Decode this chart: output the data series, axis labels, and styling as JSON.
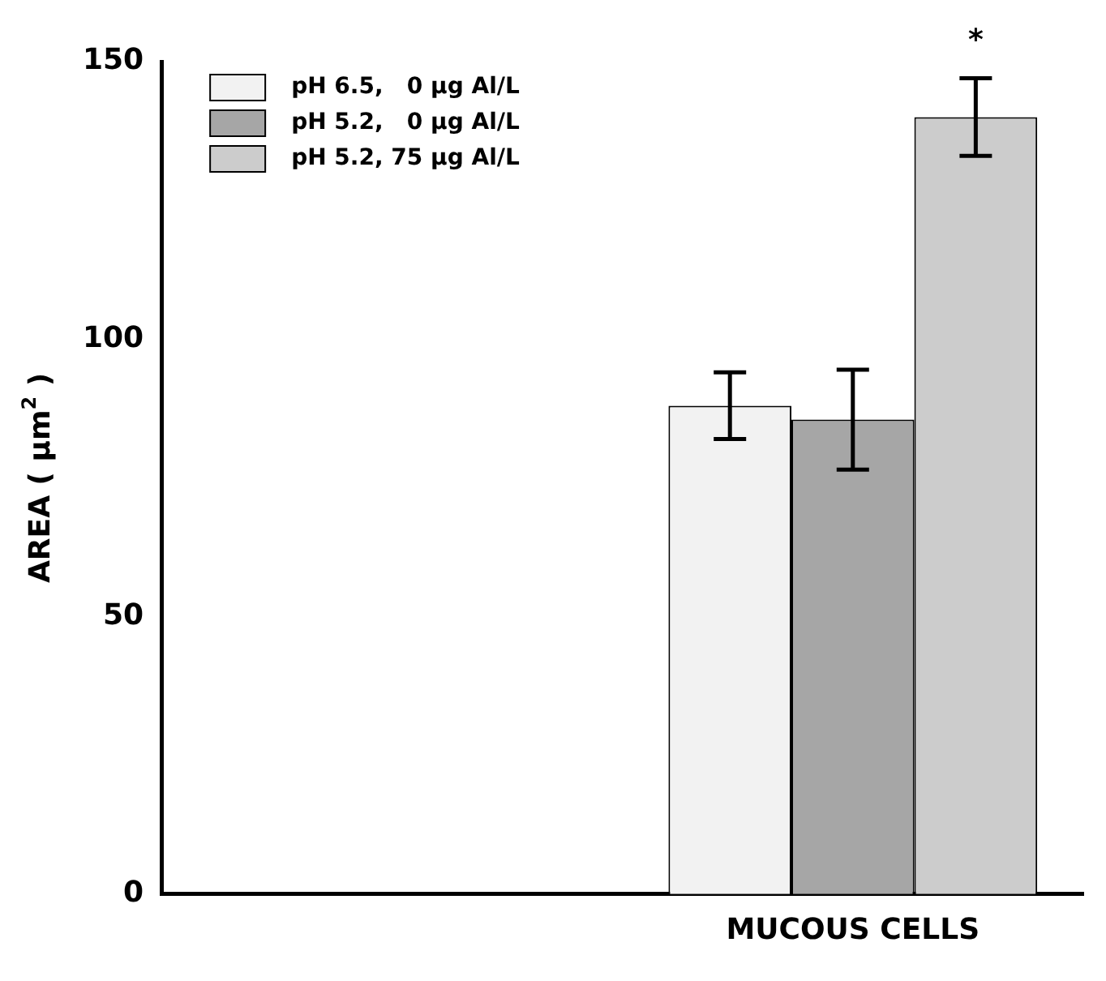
{
  "chart_data": {
    "type": "bar",
    "ylabel": "AREA ( μm$^{2}$ )",
    "categories": [
      null,
      "MUCOUS CELLS"
    ],
    "series": [
      {
        "name": "pH 6.5,   0 μg Al/L",
        "color": "#f2f2f2",
        "values": [
          null,
          88
        ],
        "errors": [
          null,
          6
        ]
      },
      {
        "name": "pH 5.2,   0 μg Al/L",
        "color": "#a6a6a6",
        "values": [
          null,
          85.5
        ],
        "errors": [
          null,
          9
        ]
      },
      {
        "name": "pH 5.2, 75 μg Al/L",
        "color": "#cccccc",
        "values": [
          null,
          140
        ],
        "errors": [
          null,
          7
        ]
      }
    ],
    "ylim": [
      0,
      150
    ],
    "yticks": [
      0,
      50,
      100,
      150
    ],
    "grid": false,
    "legend": "top left",
    "annotations": [
      "*"
    ]
  }
}
